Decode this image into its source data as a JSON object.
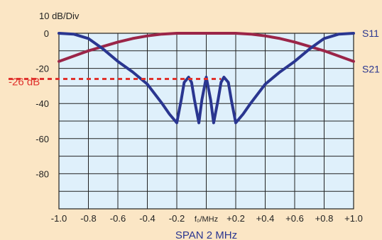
{
  "chart_data": {
    "type": "line",
    "y_scale_label": "10 dB/Div",
    "marker_label": "-26 dB",
    "xlabel": "SPAN 2 MHz",
    "x_center_label": "f₀/MHz",
    "xlim": [
      -1.0,
      1.0
    ],
    "ylim": [
      -100,
      0
    ],
    "grid": true,
    "x_ticks": [
      -1.0,
      -0.8,
      -0.6,
      -0.4,
      -0.2,
      0,
      0.2,
      0.4,
      0.6,
      0.8,
      1.0
    ],
    "x_tick_labels": [
      "-1.0",
      "-0.8",
      "-0.6",
      "-0.4",
      "-0.2",
      "",
      "+0.2",
      "+0.4",
      "+0.6",
      "+0.8",
      "+1.0"
    ],
    "y_ticks": [
      0,
      -20,
      -40,
      -60,
      -80
    ],
    "y_tick_labels": [
      "0",
      "-20",
      "-40",
      "-60",
      "-80"
    ],
    "marker_level": -26,
    "series": [
      {
        "name": "S11",
        "color": "#2a3690",
        "x": [
          -1.0,
          -0.9,
          -0.8,
          -0.7,
          -0.6,
          -0.5,
          -0.4,
          -0.3,
          -0.25,
          -0.2,
          -0.17,
          -0.15,
          -0.12,
          -0.1,
          -0.08,
          -0.05,
          -0.03,
          0,
          0.03,
          0.05,
          0.08,
          0.1,
          0.12,
          0.15,
          0.17,
          0.2,
          0.25,
          0.3,
          0.4,
          0.5,
          0.6,
          0.7,
          0.8,
          0.9,
          1.0
        ],
        "y": [
          0,
          -0.5,
          -3,
          -9,
          -16,
          -22,
          -29,
          -40,
          -46,
          -51,
          -38,
          -28,
          -25,
          -28,
          -38,
          -51,
          -38,
          -25,
          -38,
          -51,
          -38,
          -28,
          -25,
          -28,
          -38,
          -51,
          -46,
          -40,
          -29,
          -22,
          -16,
          -9,
          -3,
          -0.5,
          0
        ]
      },
      {
        "name": "S21",
        "color": "#9b2548",
        "x": [
          -1.0,
          -0.9,
          -0.8,
          -0.7,
          -0.6,
          -0.5,
          -0.4,
          -0.3,
          -0.2,
          -0.1,
          0,
          0.1,
          0.2,
          0.3,
          0.4,
          0.5,
          0.6,
          0.7,
          0.8,
          0.9,
          1.0
        ],
        "y": [
          -16,
          -13,
          -10,
          -7.5,
          -5,
          -3,
          -1.5,
          -0.5,
          0,
          0,
          0,
          0,
          0,
          -0.5,
          -1.5,
          -3,
          -5,
          -7.5,
          -10,
          -13,
          -16
        ]
      }
    ]
  },
  "colors": {
    "background": "#fbe6c5",
    "plot_area": "#dff0fb",
    "grid": "#222222",
    "marker": "#e0322d",
    "label_blue": "#2a3690"
  }
}
